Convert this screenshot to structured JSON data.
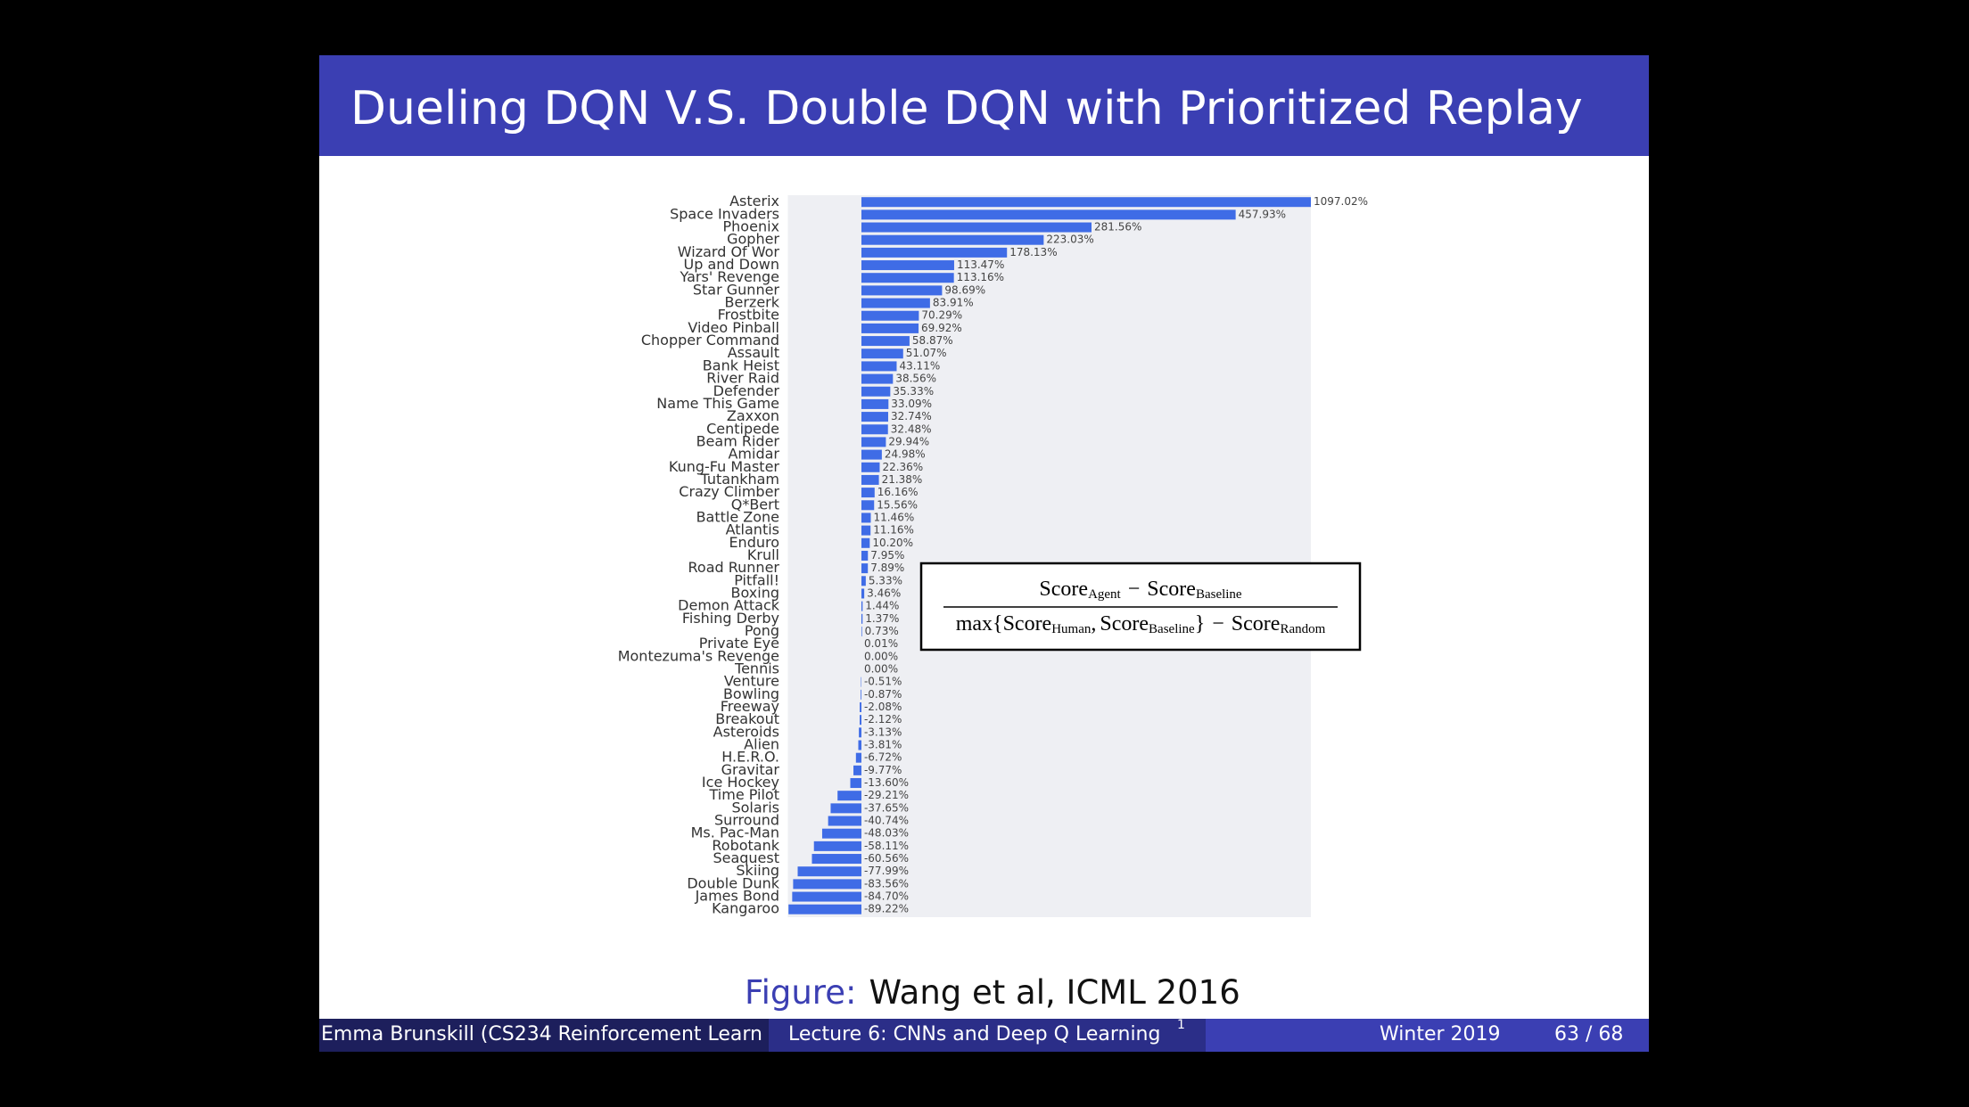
{
  "slide": {
    "title": "Dueling DQN V.S. Double DQN with Prioritized Replay",
    "caption": {
      "label": "Figure:",
      "text": "Wang et al, ICML 2016"
    },
    "formula": {
      "numerator": [
        "Score",
        "Agent",
        "−",
        "Score",
        "Baseline"
      ],
      "denominator": [
        "max{",
        "Score",
        "Human",
        ",",
        "Score",
        "Baseline",
        "}",
        "−",
        "Score",
        "Random"
      ]
    },
    "footer": {
      "author": "Emma Brunskill (CS234 Reinforcement Learn",
      "lecture": "Lecture 6: CNNs and Deep Q Learning",
      "footnote_mark": "1",
      "term": "Winter 2019",
      "page": "63 / 68"
    }
  },
  "chart_data": {
    "type": "hbar",
    "color": "#3f6ce6",
    "xlim": [
      -90,
      550
    ],
    "categories": [
      "Asterix",
      "Space Invaders",
      "Phoenix",
      "Gopher",
      "Wizard Of Wor",
      "Up and Down",
      "Yars' Revenge",
      "Star Gunner",
      "Berzerk",
      "Frostbite",
      "Video Pinball",
      "Chopper Command",
      "Assault",
      "Bank Heist",
      "River Raid",
      "Defender",
      "Name This Game",
      "Zaxxon",
      "Centipede",
      "Beam Rider",
      "Amidar",
      "Kung-Fu Master",
      "Tutankham",
      "Crazy Climber",
      "Q*Bert",
      "Battle Zone",
      "Atlantis",
      "Enduro",
      "Krull",
      "Road Runner",
      "Pitfall!",
      "Boxing",
      "Demon Attack",
      "Fishing Derby",
      "Pong",
      "Private Eye",
      "Montezuma's Revenge",
      "Tennis",
      "Venture",
      "Bowling",
      "Freeway",
      "Breakout",
      "Asteroids",
      "Alien",
      "H.E.R.O.",
      "Gravitar",
      "Ice Hockey",
      "Time Pilot",
      "Solaris",
      "Surround",
      "Ms. Pac-Man",
      "Robotank",
      "Seaquest",
      "Skiing",
      "Double Dunk",
      "James Bond",
      "Kangaroo"
    ],
    "values": [
      1097.02,
      457.93,
      281.56,
      223.03,
      178.13,
      113.47,
      113.16,
      98.69,
      83.91,
      70.29,
      69.92,
      58.87,
      51.07,
      43.11,
      38.56,
      35.33,
      33.09,
      32.74,
      32.48,
      29.94,
      24.98,
      22.36,
      21.38,
      16.16,
      15.56,
      11.46,
      11.16,
      10.2,
      7.95,
      7.89,
      5.33,
      3.46,
      1.44,
      1.37,
      0.73,
      0.01,
      0,
      0,
      -0.51,
      -0.87,
      -2.08,
      -2.12,
      -3.13,
      -3.81,
      -6.72,
      -9.77,
      -13.6,
      -29.21,
      -37.65,
      -40.74,
      -48.03,
      -58.11,
      -60.56,
      -77.99,
      -83.56,
      -84.7,
      -89.22
    ],
    "value_labels": [
      "1097.02%",
      "457.93%",
      "281.56%",
      "223.03%",
      "178.13%",
      "113.47%",
      "113.16%",
      "98.69%",
      "83.91%",
      "70.29%",
      "69.92%",
      "58.87%",
      "51.07%",
      "43.11%",
      "38.56%",
      "35.33%",
      "33.09%",
      "32.74%",
      "32.48%",
      "29.94%",
      "24.98%",
      "22.36%",
      "21.38%",
      "16.16%",
      "15.56%",
      "11.46%",
      "11.16%",
      "10.20%",
      "7.95%",
      "7.89%",
      "5.33%",
      "3.46%",
      "1.44%",
      "1.37%",
      "0.73%",
      "0.01%",
      "0.00%",
      "0.00%",
      "-0.51%",
      "-0.87%",
      "-2.08%",
      "-2.12%",
      "-3.13%",
      "-3.81%",
      "-6.72%",
      "-9.77%",
      "-13.60%",
      "-29.21%",
      "-37.65%",
      "-40.74%",
      "-48.03%",
      "-58.11%",
      "-60.56%",
      "-77.99%",
      "-83.56%",
      "-84.70%",
      "-89.22%"
    ]
  }
}
